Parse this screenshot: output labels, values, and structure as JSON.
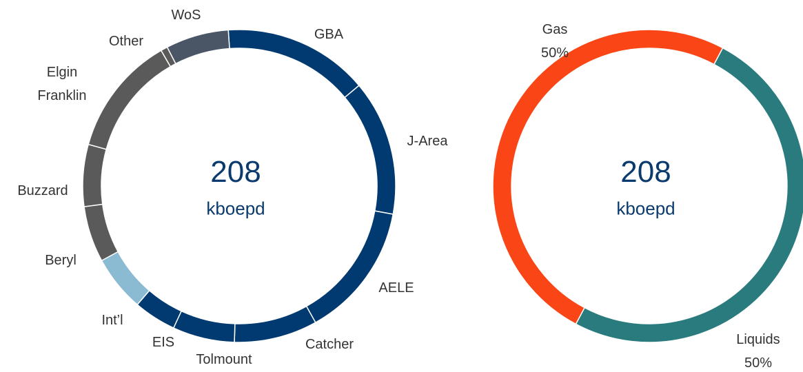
{
  "chart_data": [
    {
      "type": "donut",
      "categories": [
        "GBA",
        "J-Area",
        "AELE",
        "Catcher",
        "Tolmount",
        "EIS",
        "Int’l",
        "Beryl",
        "Buzzard",
        "Elgin Franklin",
        "Other",
        "WoS"
      ],
      "values": [
        15,
        14,
        14,
        8.6,
        6.4,
        4.4,
        5.8,
        5.8,
        6.4,
        12.4,
        0.7,
        6.5
      ],
      "colors": [
        "#003a70",
        "#003a70",
        "#003a70",
        "#003a70",
        "#003a70",
        "#003a70",
        "#8bbbd2",
        "#5a5a5a",
        "#5a5a5a",
        "#5a5a5a",
        "#5a5a5a",
        "#4a5566"
      ],
      "center_value": "208",
      "center_unit": "kboepd"
    },
    {
      "type": "donut",
      "categories": [
        "Liquids",
        "Gas"
      ],
      "values": [
        50,
        50
      ],
      "value_labels": [
        "50%",
        "50%"
      ],
      "colors": [
        "#2a7b7e",
        "#fa4616"
      ],
      "center_value": "208",
      "center_unit": "kboepd"
    }
  ]
}
